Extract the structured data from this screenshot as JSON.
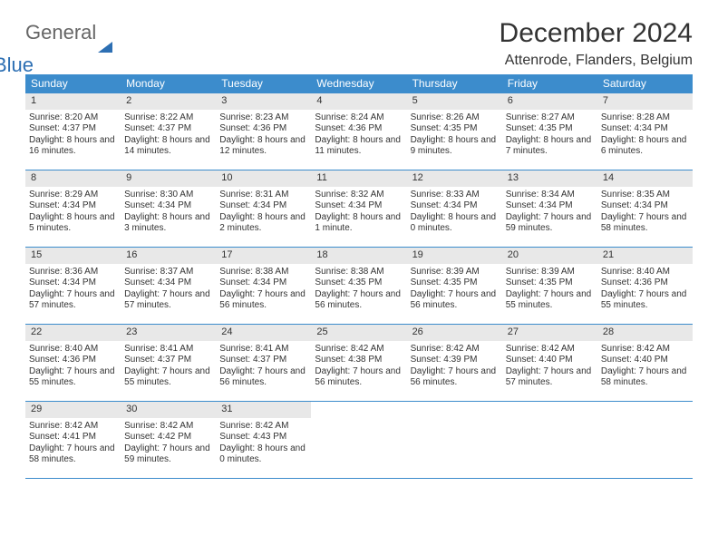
{
  "logo": {
    "line1": "General",
    "line2": "Blue"
  },
  "title": "December 2024",
  "location": "Attenrode, Flanders, Belgium",
  "colors": {
    "header_bg": "#3c8ccc",
    "band_bg": "#e8e8e8",
    "rule": "#3c8ccc",
    "text": "#333333",
    "logo_gray": "#666666",
    "logo_blue": "#2d6fb3"
  },
  "daysOfWeek": [
    "Sunday",
    "Monday",
    "Tuesday",
    "Wednesday",
    "Thursday",
    "Friday",
    "Saturday"
  ],
  "weeks": [
    [
      {
        "n": "1",
        "sr": "8:20 AM",
        "ss": "4:37 PM",
        "dl": "8 hours and 16 minutes."
      },
      {
        "n": "2",
        "sr": "8:22 AM",
        "ss": "4:37 PM",
        "dl": "8 hours and 14 minutes."
      },
      {
        "n": "3",
        "sr": "8:23 AM",
        "ss": "4:36 PM",
        "dl": "8 hours and 12 minutes."
      },
      {
        "n": "4",
        "sr": "8:24 AM",
        "ss": "4:36 PM",
        "dl": "8 hours and 11 minutes."
      },
      {
        "n": "5",
        "sr": "8:26 AM",
        "ss": "4:35 PM",
        "dl": "8 hours and 9 minutes."
      },
      {
        "n": "6",
        "sr": "8:27 AM",
        "ss": "4:35 PM",
        "dl": "8 hours and 7 minutes."
      },
      {
        "n": "7",
        "sr": "8:28 AM",
        "ss": "4:34 PM",
        "dl": "8 hours and 6 minutes."
      }
    ],
    [
      {
        "n": "8",
        "sr": "8:29 AM",
        "ss": "4:34 PM",
        "dl": "8 hours and 5 minutes."
      },
      {
        "n": "9",
        "sr": "8:30 AM",
        "ss": "4:34 PM",
        "dl": "8 hours and 3 minutes."
      },
      {
        "n": "10",
        "sr": "8:31 AM",
        "ss": "4:34 PM",
        "dl": "8 hours and 2 minutes."
      },
      {
        "n": "11",
        "sr": "8:32 AM",
        "ss": "4:34 PM",
        "dl": "8 hours and 1 minute."
      },
      {
        "n": "12",
        "sr": "8:33 AM",
        "ss": "4:34 PM",
        "dl": "8 hours and 0 minutes."
      },
      {
        "n": "13",
        "sr": "8:34 AM",
        "ss": "4:34 PM",
        "dl": "7 hours and 59 minutes."
      },
      {
        "n": "14",
        "sr": "8:35 AM",
        "ss": "4:34 PM",
        "dl": "7 hours and 58 minutes."
      }
    ],
    [
      {
        "n": "15",
        "sr": "8:36 AM",
        "ss": "4:34 PM",
        "dl": "7 hours and 57 minutes."
      },
      {
        "n": "16",
        "sr": "8:37 AM",
        "ss": "4:34 PM",
        "dl": "7 hours and 57 minutes."
      },
      {
        "n": "17",
        "sr": "8:38 AM",
        "ss": "4:34 PM",
        "dl": "7 hours and 56 minutes."
      },
      {
        "n": "18",
        "sr": "8:38 AM",
        "ss": "4:35 PM",
        "dl": "7 hours and 56 minutes."
      },
      {
        "n": "19",
        "sr": "8:39 AM",
        "ss": "4:35 PM",
        "dl": "7 hours and 56 minutes."
      },
      {
        "n": "20",
        "sr": "8:39 AM",
        "ss": "4:35 PM",
        "dl": "7 hours and 55 minutes."
      },
      {
        "n": "21",
        "sr": "8:40 AM",
        "ss": "4:36 PM",
        "dl": "7 hours and 55 minutes."
      }
    ],
    [
      {
        "n": "22",
        "sr": "8:40 AM",
        "ss": "4:36 PM",
        "dl": "7 hours and 55 minutes."
      },
      {
        "n": "23",
        "sr": "8:41 AM",
        "ss": "4:37 PM",
        "dl": "7 hours and 55 minutes."
      },
      {
        "n": "24",
        "sr": "8:41 AM",
        "ss": "4:37 PM",
        "dl": "7 hours and 56 minutes."
      },
      {
        "n": "25",
        "sr": "8:42 AM",
        "ss": "4:38 PM",
        "dl": "7 hours and 56 minutes."
      },
      {
        "n": "26",
        "sr": "8:42 AM",
        "ss": "4:39 PM",
        "dl": "7 hours and 56 minutes."
      },
      {
        "n": "27",
        "sr": "8:42 AM",
        "ss": "4:40 PM",
        "dl": "7 hours and 57 minutes."
      },
      {
        "n": "28",
        "sr": "8:42 AM",
        "ss": "4:40 PM",
        "dl": "7 hours and 58 minutes."
      }
    ],
    [
      {
        "n": "29",
        "sr": "8:42 AM",
        "ss": "4:41 PM",
        "dl": "7 hours and 58 minutes."
      },
      {
        "n": "30",
        "sr": "8:42 AM",
        "ss": "4:42 PM",
        "dl": "7 hours and 59 minutes."
      },
      {
        "n": "31",
        "sr": "8:42 AM",
        "ss": "4:43 PM",
        "dl": "8 hours and 0 minutes."
      },
      null,
      null,
      null,
      null
    ]
  ],
  "labels": {
    "sunrise": "Sunrise: ",
    "sunset": "Sunset: ",
    "daylight": "Daylight: "
  }
}
